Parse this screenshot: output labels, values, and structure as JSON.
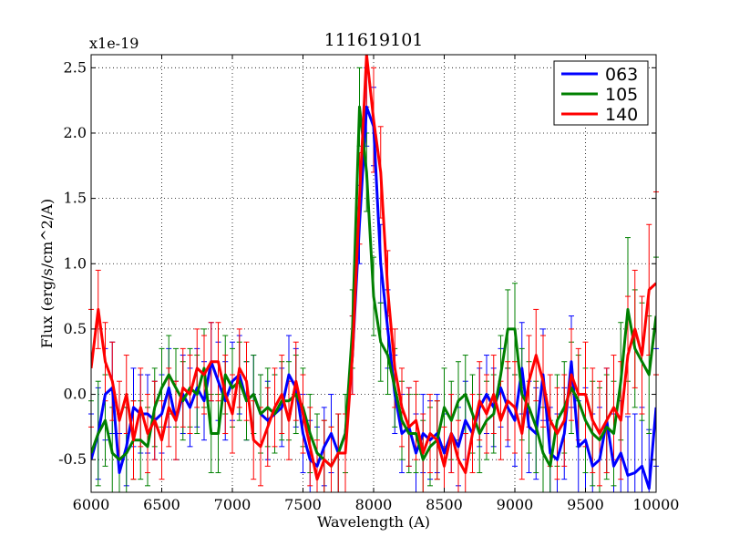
{
  "chart_data": {
    "type": "line",
    "title": "111619101",
    "xlabel": "Wavelength (A)",
    "ylabel": "Flux (erg/s/cm^2/A)",
    "offset_label": "x1e-19",
    "xlim": [
      6000,
      10000
    ],
    "ylim": [
      -0.75,
      2.6
    ],
    "x_ticks": [
      6000,
      6500,
      7000,
      7500,
      8000,
      8500,
      9000,
      9500,
      10000
    ],
    "x_tick_labels": [
      "6000",
      "6500",
      "7000",
      "7500",
      "8000",
      "8500",
      "9000",
      "9500",
      "10000"
    ],
    "y_ticks": [
      -0.5,
      0.0,
      0.5,
      1.0,
      1.5,
      2.0,
      2.5
    ],
    "y_tick_labels": [
      "-0.5",
      "0.0",
      "0.5",
      "1.0",
      "1.5",
      "2.0",
      "2.5"
    ],
    "grid": true,
    "legend_position": "top-right",
    "x": [
      6000,
      6050,
      6100,
      6150,
      6200,
      6250,
      6300,
      6350,
      6400,
      6450,
      6500,
      6550,
      6600,
      6650,
      6700,
      6750,
      6800,
      6850,
      6900,
      6950,
      7000,
      7050,
      7100,
      7150,
      7200,
      7250,
      7300,
      7350,
      7400,
      7450,
      7500,
      7550,
      7600,
      7650,
      7700,
      7750,
      7800,
      7850,
      7900,
      7950,
      8000,
      8050,
      8100,
      8150,
      8200,
      8250,
      8300,
      8350,
      8400,
      8450,
      8500,
      8550,
      8600,
      8650,
      8700,
      8750,
      8800,
      8850,
      8900,
      8950,
      9000,
      9050,
      9100,
      9150,
      9200,
      9250,
      9300,
      9350,
      9400,
      9450,
      9500,
      9550,
      9600,
      9650,
      9700,
      9750,
      9800,
      9850,
      9900,
      9950,
      10000
    ],
    "series": [
      {
        "name": "063",
        "color": "#0000ff",
        "values": [
          -0.5,
          -0.3,
          0.0,
          0.05,
          -0.6,
          -0.4,
          -0.1,
          -0.15,
          -0.15,
          -0.2,
          -0.15,
          0.05,
          -0.2,
          0.0,
          -0.1,
          0.05,
          -0.05,
          0.25,
          0.1,
          -0.05,
          0.1,
          0.15,
          -0.05,
          0.0,
          -0.15,
          -0.2,
          -0.15,
          -0.1,
          0.15,
          0.05,
          -0.3,
          -0.5,
          -0.55,
          -0.4,
          -0.3,
          -0.45,
          -0.3,
          0.3,
          1.3,
          2.2,
          2.05,
          1.0,
          0.5,
          0.0,
          -0.3,
          -0.25,
          -0.45,
          -0.3,
          -0.35,
          -0.3,
          -0.45,
          -0.3,
          -0.4,
          -0.2,
          -0.3,
          -0.1,
          0.0,
          -0.1,
          0.05,
          -0.1,
          -0.2,
          0.2,
          -0.25,
          -0.3,
          0.15,
          -0.45,
          -0.5,
          -0.3,
          0.25,
          -0.4,
          -0.35,
          -0.55,
          -0.5,
          -0.2,
          -0.55,
          -0.45,
          -0.62,
          -0.6,
          -0.55,
          -0.72,
          -0.1
        ],
        "errors": [
          0.35,
          0.35,
          0.35,
          0.35,
          0.3,
          0.3,
          0.3,
          0.3,
          0.3,
          0.3,
          0.3,
          0.3,
          0.3,
          0.3,
          0.3,
          0.3,
          0.3,
          0.3,
          0.3,
          0.3,
          0.3,
          0.3,
          0.3,
          0.3,
          0.3,
          0.3,
          0.3,
          0.3,
          0.3,
          0.3,
          0.3,
          0.3,
          0.3,
          0.3,
          0.3,
          0.3,
          0.3,
          0.3,
          0.3,
          0.3,
          0.3,
          0.3,
          0.3,
          0.3,
          0.3,
          0.3,
          0.3,
          0.3,
          0.3,
          0.3,
          0.3,
          0.3,
          0.3,
          0.3,
          0.3,
          0.3,
          0.3,
          0.3,
          0.3,
          0.3,
          0.35,
          0.35,
          0.35,
          0.35,
          0.35,
          0.35,
          0.35,
          0.35,
          0.35,
          0.35,
          0.4,
          0.4,
          0.4,
          0.4,
          0.4,
          0.4,
          0.45,
          0.45,
          0.45,
          0.45,
          0.45
        ]
      },
      {
        "name": "105",
        "color": "#008000",
        "values": [
          -0.45,
          -0.3,
          -0.2,
          -0.45,
          -0.5,
          -0.45,
          -0.35,
          -0.35,
          -0.4,
          -0.1,
          0.05,
          0.15,
          0.05,
          -0.05,
          0.05,
          0.0,
          0.2,
          -0.3,
          -0.3,
          0.15,
          0.05,
          0.1,
          -0.05,
          0.0,
          -0.15,
          -0.1,
          -0.15,
          -0.05,
          -0.05,
          0.0,
          -0.1,
          -0.3,
          -0.45,
          -0.5,
          -0.55,
          -0.45,
          -0.3,
          0.5,
          2.2,
          1.7,
          0.75,
          0.4,
          0.3,
          0.05,
          -0.2,
          -0.3,
          -0.3,
          -0.5,
          -0.4,
          -0.35,
          -0.1,
          -0.2,
          -0.05,
          0.0,
          -0.15,
          -0.3,
          -0.2,
          -0.15,
          0.15,
          0.5,
          0.5,
          0.0,
          -0.1,
          -0.25,
          -0.45,
          -0.55,
          -0.2,
          -0.1,
          0.05,
          -0.05,
          -0.2,
          -0.3,
          -0.35,
          -0.25,
          -0.3,
          0.1,
          0.65,
          0.35,
          0.25,
          0.15,
          0.6
        ],
        "errors": [
          0.4,
          0.4,
          0.35,
          0.35,
          0.35,
          0.35,
          0.3,
          0.3,
          0.3,
          0.3,
          0.3,
          0.3,
          0.3,
          0.3,
          0.3,
          0.3,
          0.3,
          0.3,
          0.3,
          0.3,
          0.3,
          0.3,
          0.3,
          0.3,
          0.3,
          0.3,
          0.3,
          0.3,
          0.3,
          0.3,
          0.3,
          0.3,
          0.3,
          0.3,
          0.3,
          0.3,
          0.3,
          0.3,
          0.3,
          0.3,
          0.3,
          0.3,
          0.3,
          0.3,
          0.3,
          0.3,
          0.3,
          0.3,
          0.3,
          0.3,
          0.3,
          0.3,
          0.3,
          0.3,
          0.3,
          0.3,
          0.3,
          0.3,
          0.3,
          0.3,
          0.35,
          0.35,
          0.35,
          0.35,
          0.35,
          0.35,
          0.35,
          0.35,
          0.35,
          0.35,
          0.4,
          0.4,
          0.4,
          0.4,
          0.4,
          0.45,
          0.55,
          0.45,
          0.45,
          0.45,
          0.45
        ]
      },
      {
        "name": "140",
        "color": "#ff0000",
        "values": [
          0.2,
          0.65,
          0.25,
          0.1,
          -0.2,
          0.0,
          -0.35,
          -0.1,
          -0.3,
          -0.2,
          -0.35,
          -0.1,
          -0.2,
          0.05,
          0.0,
          0.2,
          0.15,
          0.25,
          0.25,
          0.0,
          -0.15,
          0.2,
          0.1,
          -0.35,
          -0.4,
          -0.25,
          -0.1,
          0.0,
          -0.2,
          0.1,
          -0.15,
          -0.4,
          -0.65,
          -0.5,
          -0.55,
          -0.45,
          -0.45,
          0.3,
          1.5,
          2.6,
          2.1,
          1.7,
          0.8,
          0.2,
          -0.1,
          -0.25,
          -0.2,
          -0.45,
          -0.3,
          -0.35,
          -0.55,
          -0.3,
          -0.5,
          -0.6,
          -0.3,
          -0.05,
          -0.15,
          0.0,
          -0.2,
          -0.05,
          -0.1,
          -0.3,
          0.1,
          0.3,
          0.1,
          -0.2,
          -0.3,
          -0.2,
          0.15,
          0.0,
          0.0,
          -0.2,
          -0.3,
          -0.2,
          -0.1,
          -0.2,
          0.3,
          0.5,
          0.3,
          0.8,
          0.85
        ],
        "errors": [
          0.45,
          0.3,
          0.3,
          0.3,
          0.3,
          0.3,
          0.3,
          0.3,
          0.3,
          0.3,
          0.3,
          0.3,
          0.3,
          0.3,
          0.3,
          0.3,
          0.3,
          0.3,
          0.3,
          0.3,
          0.3,
          0.3,
          0.3,
          0.3,
          0.3,
          0.3,
          0.3,
          0.3,
          0.3,
          0.3,
          0.3,
          0.3,
          0.3,
          0.3,
          0.3,
          0.3,
          0.3,
          0.3,
          0.35,
          0.4,
          0.4,
          0.35,
          0.3,
          0.3,
          0.3,
          0.3,
          0.3,
          0.3,
          0.3,
          0.3,
          0.3,
          0.3,
          0.3,
          0.3,
          0.3,
          0.3,
          0.3,
          0.3,
          0.3,
          0.3,
          0.35,
          0.35,
          0.35,
          0.35,
          0.35,
          0.35,
          0.35,
          0.35,
          0.35,
          0.35,
          0.4,
          0.4,
          0.4,
          0.4,
          0.4,
          0.45,
          0.45,
          0.45,
          0.45,
          0.5,
          0.7
        ]
      }
    ]
  }
}
